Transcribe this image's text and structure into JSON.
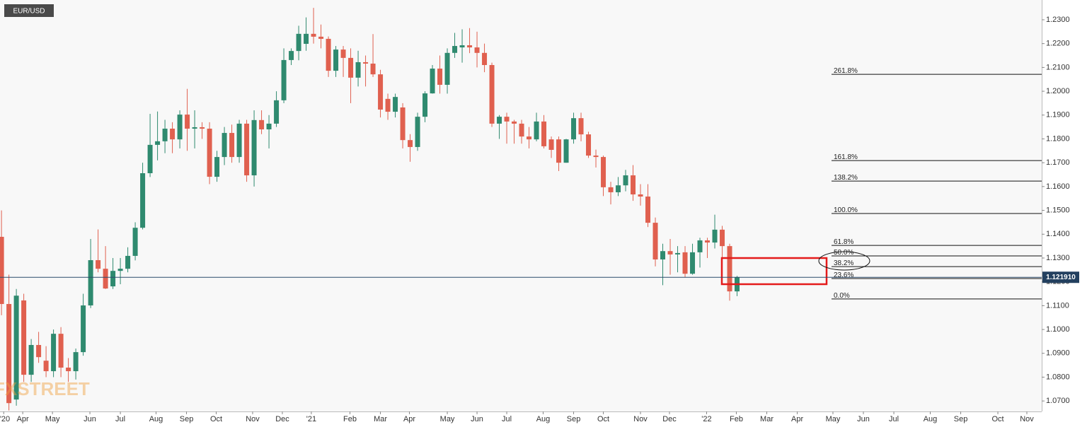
{
  "chart_data": {
    "type": "candlestick",
    "symbol": "EUR/USD",
    "watermark": "FXSTREET",
    "up_color": "#2f8a6f",
    "down_color": "#e0604f",
    "open": [
      1.1389,
      1.1107,
      1.0706,
      1.1122,
      1.081,
      1.0935,
      1.0869,
      1.0825,
      1.0982,
      1.084,
      1.0825,
      1.0905,
      1.1101,
      1.1291,
      1.1255,
      1.1181,
      1.1246,
      1.1255,
      1.1309,
      1.1427,
      1.1656,
      1.1775,
      1.179,
      1.1843,
      1.1798,
      1.1902,
      1.1843,
      1.1849,
      1.1843,
      1.1641,
      1.1724,
      1.1825,
      1.1724,
      1.1864,
      1.1647,
      1.1879,
      1.184,
      1.1864,
      1.1962,
      1.2131,
      1.2169,
      1.2199,
      1.2241,
      1.2229,
      1.222,
      1.2086,
      1.2175,
      1.214,
      1.2057,
      1.2122,
      1.2116,
      1.2071,
      1.1968,
      1.1914,
      1.1932,
      1.1795,
      1.1766,
      1.1893,
      1.1991,
      1.2095,
      1.2027,
      1.2161,
      1.2184,
      1.2193,
      1.2184,
      1.2161,
      1.211,
      1.1864,
      1.1893,
      1.1873,
      1.1864,
      1.181,
      1.1798,
      1.1873,
      1.1798,
      1.1798,
      1.17,
      1.1798,
      1.1887,
      1.1819,
      1.173,
      1.1724,
      1.1597,
      1.1576,
      1.1605,
      1.1647,
      1.1567,
      1.1558,
      1.1448,
      1.1294,
      1.1329,
      1.1315,
      1.1324,
      1.1234,
      1.1324,
      1.1374,
      1.1365,
      1.1419,
      1.135,
      1.116
    ],
    "high": [
      1.15,
      1.123,
      1.117,
      1.115,
      1.096,
      1.099,
      1.093,
      1.1,
      1.101,
      1.088,
      1.092,
      1.115,
      1.138,
      1.142,
      1.135,
      1.13,
      1.13,
      1.1345,
      1.145,
      1.17,
      1.1905,
      1.1915,
      1.188,
      1.187,
      1.192,
      1.201,
      1.192,
      1.187,
      1.187,
      1.175,
      1.185,
      1.186,
      1.188,
      1.188,
      1.192,
      1.192,
      1.19,
      1.2,
      1.218,
      1.218,
      1.2275,
      1.231,
      1.235,
      1.228,
      1.223,
      1.219,
      1.219,
      1.218,
      1.217,
      1.215,
      1.224,
      1.209,
      1.199,
      1.199,
      1.195,
      1.182,
      1.191,
      1.2,
      1.211,
      1.215,
      1.218,
      1.2245,
      1.226,
      1.2265,
      1.225,
      1.22,
      1.212,
      1.19,
      1.191,
      1.188,
      1.188,
      1.185,
      1.191,
      1.19,
      1.181,
      1.181,
      1.18,
      1.191,
      1.191,
      1.183,
      1.1755,
      1.173,
      1.162,
      1.164,
      1.167,
      1.169,
      1.161,
      1.161,
      1.147,
      1.136,
      1.138,
      1.135,
      1.135,
      1.136,
      1.1385,
      1.1385,
      1.1482,
      1.1435,
      1.136,
      1.1225
    ],
    "low": [
      1.106,
      1.066,
      1.068,
      1.078,
      1.078,
      1.086,
      1.08,
      1.08,
      1.08,
      1.078,
      1.079,
      1.089,
      1.109,
      1.124,
      1.117,
      1.117,
      1.119,
      1.124,
      1.129,
      1.142,
      1.164,
      1.171,
      1.174,
      1.174,
      1.176,
      1.175,
      1.176,
      1.18,
      1.161,
      1.162,
      1.169,
      1.17,
      1.17,
      1.162,
      1.16,
      1.182,
      1.176,
      1.185,
      1.195,
      1.211,
      1.213,
      1.217,
      1.22,
      1.218,
      1.206,
      1.206,
      1.206,
      1.195,
      1.202,
      1.202,
      1.206,
      1.189,
      1.188,
      1.189,
      1.176,
      1.1704,
      1.175,
      1.187,
      1.199,
      1.199,
      1.199,
      1.214,
      1.212,
      1.216,
      1.21,
      1.208,
      1.185,
      1.18,
      1.178,
      1.178,
      1.178,
      1.176,
      1.179,
      1.176,
      1.172,
      1.1665,
      1.17,
      1.178,
      1.179,
      1.172,
      1.168,
      1.156,
      1.1525,
      1.156,
      1.158,
      1.154,
      1.152,
      1.143,
      1.1265,
      1.1186,
      1.123,
      1.124,
      1.122,
      1.123,
      1.126,
      1.13,
      1.134,
      1.13,
      1.1121,
      1.114
    ],
    "close": [
      1.1107,
      1.0691,
      1.1142,
      1.081,
      1.0935,
      1.0884,
      1.0825,
      1.0982,
      1.084,
      1.0825,
      1.0905,
      1.1101,
      1.1291,
      1.1255,
      1.1172,
      1.1246,
      1.1255,
      1.1309,
      1.1427,
      1.1656,
      1.1775,
      1.179,
      1.1843,
      1.1798,
      1.1902,
      1.1843,
      1.1849,
      1.1843,
      1.1641,
      1.1724,
      1.1825,
      1.1724,
      1.1864,
      1.1647,
      1.1879,
      1.184,
      1.1864,
      1.1962,
      1.2131,
      1.2169,
      1.2241,
      1.2241,
      1.2229,
      1.222,
      1.2086,
      1.2175,
      1.214,
      1.2057,
      1.2122,
      1.2116,
      1.2071,
      1.1923,
      1.1914,
      1.1976,
      1.1795,
      1.1766,
      1.1893,
      1.1991,
      1.2095,
      1.2027,
      1.2161,
      1.219,
      1.2193,
      1.2184,
      1.2161,
      1.211,
      1.1864,
      1.1893,
      1.1873,
      1.1864,
      1.181,
      1.1798,
      1.1873,
      1.1769,
      1.1754,
      1.17,
      1.1798,
      1.1887,
      1.1819,
      1.173,
      1.1724,
      1.1597,
      1.1576,
      1.1605,
      1.1647,
      1.1567,
      1.1558,
      1.1448,
      1.1294,
      1.1329,
      1.1315,
      1.1321,
      1.1234,
      1.1324,
      1.1374,
      1.1365,
      1.1419,
      1.135,
      1.116,
      1.122
    ],
    "xlim": [
      -0.2,
      140.0
    ],
    "xticks": [
      {
        "value": 0.3,
        "label": "'20"
      },
      {
        "value": 2.86,
        "label": "Apr"
      },
      {
        "value": 6.86,
        "label": "May"
      },
      {
        "value": 11.9,
        "label": "Jun"
      },
      {
        "value": 16.0,
        "label": "Jul"
      },
      {
        "value": 20.8,
        "label": "Aug"
      },
      {
        "value": 24.9,
        "label": "Sep"
      },
      {
        "value": 28.9,
        "label": "Oct"
      },
      {
        "value": 33.8,
        "label": "Nov"
      },
      {
        "value": 37.8,
        "label": "Dec"
      },
      {
        "value": 41.7,
        "label": "'21"
      },
      {
        "value": 46.9,
        "label": "Feb"
      },
      {
        "value": 51.0,
        "label": "Mar"
      },
      {
        "value": 54.9,
        "label": "Apr"
      },
      {
        "value": 60.0,
        "label": "May"
      },
      {
        "value": 64.0,
        "label": "Jun"
      },
      {
        "value": 68.0,
        "label": "Jul"
      },
      {
        "value": 72.9,
        "label": "Aug"
      },
      {
        "value": 77.0,
        "label": "Sep"
      },
      {
        "value": 81.0,
        "label": "Oct"
      },
      {
        "value": 86.0,
        "label": "Nov"
      },
      {
        "value": 89.9,
        "label": "Dec"
      },
      {
        "value": 94.9,
        "label": "'22"
      },
      {
        "value": 98.9,
        "label": "Feb"
      },
      {
        "value": 103.0,
        "label": "Mar"
      },
      {
        "value": 107.1,
        "label": "Apr"
      },
      {
        "value": 111.9,
        "label": "May"
      },
      {
        "value": 116.0,
        "label": "Jun"
      },
      {
        "value": 120.1,
        "label": "Jul"
      },
      {
        "value": 125.0,
        "label": "Aug"
      },
      {
        "value": 129.1,
        "label": "Sep"
      },
      {
        "value": 134.1,
        "label": "Oct"
      },
      {
        "value": 138.0,
        "label": "Nov"
      }
    ],
    "ylim": [
      1.0656,
      1.2383
    ],
    "yticks": [
      {
        "value": 1.07,
        "label": "1.0700"
      },
      {
        "value": 1.08,
        "label": "1.0800"
      },
      {
        "value": 1.09,
        "label": "1.0900"
      },
      {
        "value": 1.1,
        "label": "1.1000"
      },
      {
        "value": 1.11,
        "label": "1.1100"
      },
      {
        "value": 1.12,
        "label": "1.1200"
      },
      {
        "value": 1.13,
        "label": "1.1300"
      },
      {
        "value": 1.14,
        "label": "1.1400"
      },
      {
        "value": 1.15,
        "label": "1.1500"
      },
      {
        "value": 1.16,
        "label": "1.1600"
      },
      {
        "value": 1.17,
        "label": "1.1700"
      },
      {
        "value": 1.18,
        "label": "1.1800"
      },
      {
        "value": 1.19,
        "label": "1.1900"
      },
      {
        "value": 1.2,
        "label": "1.2000"
      },
      {
        "value": 1.21,
        "label": "1.2100"
      },
      {
        "value": 1.22,
        "label": "1.2200"
      },
      {
        "value": 1.23,
        "label": "1.2300"
      }
    ],
    "last_price": {
      "value": 1.12191,
      "label": "1.121910"
    },
    "fib_levels": [
      {
        "label": "261.8%",
        "value": 1.2071
      },
      {
        "label": "161.8%",
        "value": 1.1709
      },
      {
        "label": "138.2%",
        "value": 1.1623
      },
      {
        "label": "100.0%",
        "value": 1.1487
      },
      {
        "label": "61.8%",
        "value": 1.1353
      },
      {
        "label": "50.0%",
        "value": 1.1309
      },
      {
        "label": "38.2%",
        "value": 1.1264
      },
      {
        "label": "23.6%",
        "value": 1.1214
      },
      {
        "label": "0.0%",
        "value": 1.1128
      }
    ]
  }
}
